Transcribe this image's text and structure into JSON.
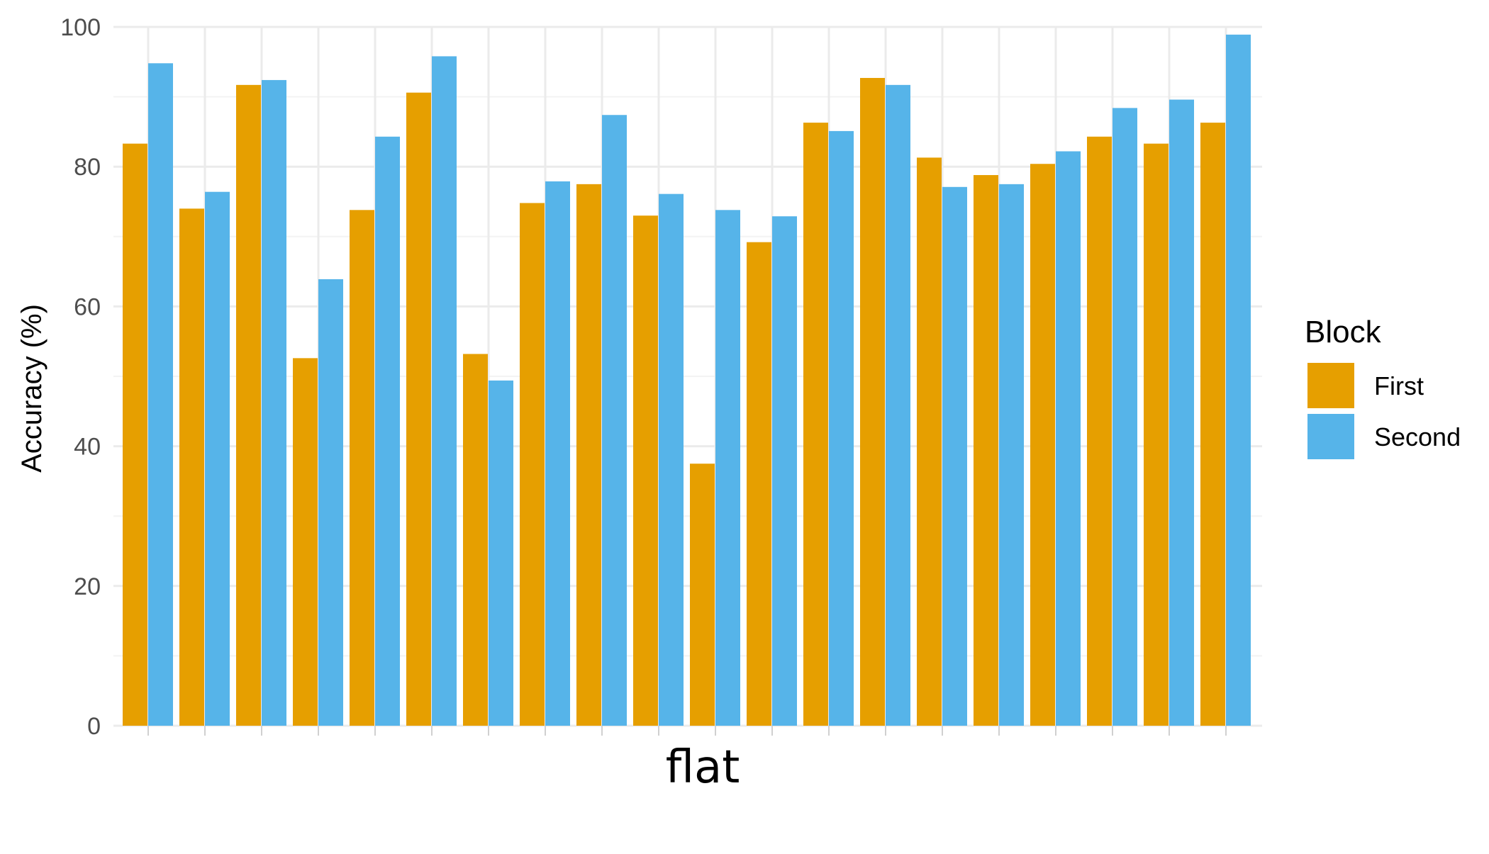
{
  "chart_data": {
    "type": "bar",
    "xlabel": "flat",
    "ylabel": "Accuracy (%)",
    "ylim": [
      0,
      100
    ],
    "yticks": [
      0,
      20,
      40,
      60,
      80,
      100
    ],
    "grid": true,
    "legend_position": "right",
    "legend_title": "Block",
    "categories": [
      "",
      "",
      "",
      "",
      "",
      "",
      "",
      "",
      "",
      "",
      "",
      "",
      "",
      "",
      "",
      "",
      "",
      "",
      "",
      ""
    ],
    "series": [
      {
        "name": "First",
        "color": "#E69F00",
        "values": [
          83.3,
          74.0,
          91.7,
          52.6,
          73.8,
          90.6,
          53.2,
          74.8,
          77.5,
          73.0,
          37.5,
          69.2,
          86.3,
          92.7,
          81.3,
          78.8,
          80.4,
          84.3,
          83.3,
          86.3
        ]
      },
      {
        "name": "Second",
        "color": "#56B4E9",
        "values": [
          94.8,
          76.4,
          92.4,
          63.9,
          84.3,
          95.8,
          49.4,
          77.9,
          87.4,
          76.1,
          73.8,
          72.9,
          85.1,
          91.7,
          77.1,
          77.5,
          82.2,
          88.4,
          89.6,
          98.9
        ]
      }
    ]
  }
}
